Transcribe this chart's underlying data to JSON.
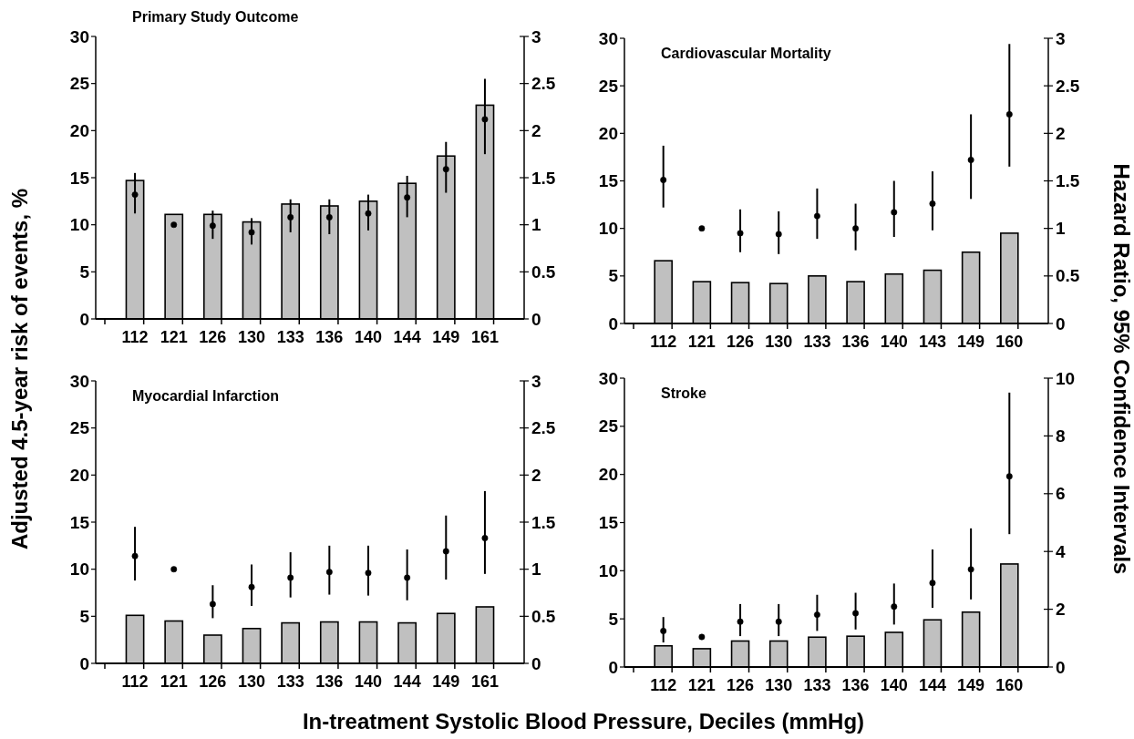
{
  "chart_data": [
    {
      "type": "bar",
      "title": "Primary Study Outcome",
      "ylabel": "Adjusted 4.5-year risk of events, %",
      "categories": [
        "112",
        "121",
        "126",
        "130",
        "133",
        "136",
        "140",
        "144",
        "149",
        "161"
      ],
      "ylim": [
        0,
        30
      ],
      "yticks": [
        0,
        5,
        10,
        15,
        20,
        25,
        30
      ],
      "y2lim": [
        0,
        3
      ],
      "y2ticks": [
        0,
        0.5,
        1,
        1.5,
        2,
        2.5,
        3
      ],
      "marker": "circle",
      "series": [
        {
          "color": "#c0c0c0",
          "values": [
            14.7,
            11.1,
            11.1,
            10.3,
            12.2,
            12.0,
            12.5,
            14.4,
            17.3,
            22.7
          ]
        },
        {
          "type": "scatter",
          "axis": "y2",
          "color": "#000000",
          "values": [
            1.32,
            1.0,
            0.99,
            0.92,
            1.08,
            1.08,
            1.12,
            1.29,
            1.59,
            2.12
          ],
          "errors": [
            [
              1.12,
              1.55
            ],
            null,
            [
              0.85,
              1.15
            ],
            [
              0.79,
              1.07
            ],
            [
              0.92,
              1.27
            ],
            [
              0.9,
              1.27
            ],
            [
              0.94,
              1.32
            ],
            [
              1.08,
              1.52
            ],
            [
              1.34,
              1.88
            ],
            [
              1.75,
              2.55
            ]
          ]
        }
      ]
    },
    {
      "type": "bar",
      "title": "Cardiovascular Mortality",
      "y2label": "Hazard Ratio, 95% Confidence Intervals",
      "categories": [
        "112",
        "121",
        "126",
        "130",
        "133",
        "136",
        "140",
        "143",
        "149",
        "160"
      ],
      "ylim": [
        0,
        30
      ],
      "yticks": [
        0,
        5,
        10,
        15,
        20,
        25,
        30
      ],
      "y2lim": [
        0,
        3
      ],
      "y2ticks": [
        0,
        0.5,
        1,
        1.5,
        2,
        2.5,
        3
      ],
      "marker": "circle",
      "series": [
        {
          "color": "#c0c0c0",
          "values": [
            6.6,
            4.4,
            4.3,
            4.2,
            5.0,
            4.4,
            5.2,
            5.6,
            7.5,
            9.5
          ]
        },
        {
          "type": "scatter",
          "axis": "y2",
          "color": "#000000",
          "values": [
            1.51,
            1.0,
            0.95,
            0.94,
            1.13,
            1.0,
            1.17,
            1.26,
            1.72,
            2.2
          ],
          "errors": [
            [
              1.22,
              1.87
            ],
            null,
            [
              0.75,
              1.2
            ],
            [
              0.73,
              1.18
            ],
            [
              0.89,
              1.42
            ],
            [
              0.77,
              1.26
            ],
            [
              0.91,
              1.5
            ],
            [
              0.98,
              1.6
            ],
            [
              1.31,
              2.2
            ],
            [
              1.65,
              2.94
            ]
          ]
        }
      ]
    },
    {
      "type": "bar",
      "title": "Myocardial Infarction",
      "xlabel": "In-treatment Systolic Blood Pressure, Deciles (mmHg)",
      "categories": [
        "112",
        "121",
        "126",
        "130",
        "133",
        "136",
        "140",
        "144",
        "149",
        "161"
      ],
      "ylim": [
        0,
        30
      ],
      "yticks": [
        0,
        5,
        10,
        15,
        20,
        25,
        30
      ],
      "y2lim": [
        0,
        3
      ],
      "y2ticks": [
        0,
        0.5,
        1,
        1.5,
        2,
        2.5,
        3
      ],
      "marker": "circle",
      "series": [
        {
          "color": "#c0c0c0",
          "values": [
            5.1,
            4.5,
            3.0,
            3.7,
            4.3,
            4.4,
            4.4,
            4.3,
            5.3,
            6.0
          ]
        },
        {
          "type": "scatter",
          "axis": "y2",
          "color": "#000000",
          "values": [
            1.14,
            1.0,
            0.63,
            0.81,
            0.91,
            0.97,
            0.96,
            0.91,
            1.19,
            1.33
          ],
          "errors": [
            [
              0.88,
              1.45
            ],
            null,
            [
              0.48,
              0.83
            ],
            [
              0.61,
              1.05
            ],
            [
              0.7,
              1.18
            ],
            [
              0.73,
              1.25
            ],
            [
              0.72,
              1.25
            ],
            [
              0.67,
              1.21
            ],
            [
              0.89,
              1.57
            ],
            [
              0.95,
              1.83
            ]
          ]
        }
      ]
    },
    {
      "type": "bar",
      "title": "Stroke",
      "categories": [
        "112",
        "121",
        "126",
        "130",
        "133",
        "136",
        "140",
        "144",
        "149",
        "160"
      ],
      "ylim": [
        0,
        30
      ],
      "yticks": [
        0,
        5,
        10,
        15,
        20,
        25,
        30
      ],
      "y2lim": [
        0,
        10
      ],
      "y2ticks": [
        0,
        2,
        4,
        6,
        8,
        10
      ],
      "marker": "circle",
      "series": [
        {
          "color": "#c0c0c0",
          "values": [
            2.2,
            1.9,
            2.7,
            2.7,
            3.1,
            3.2,
            3.6,
            4.9,
            5.7,
            10.7
          ]
        },
        {
          "type": "scatter",
          "axis": "y2",
          "color": "#000000",
          "values": [
            1.25,
            1.04,
            1.57,
            1.57,
            1.81,
            1.86,
            2.09,
            2.91,
            3.38,
            6.6
          ],
          "errors": [
            [
              0.85,
              1.73
            ],
            null,
            [
              1.07,
              2.18
            ],
            [
              1.07,
              2.18
            ],
            [
              1.25,
              2.5
            ],
            [
              1.3,
              2.57
            ],
            [
              1.47,
              2.89
            ],
            [
              2.05,
              4.07
            ],
            [
              2.34,
              4.8
            ],
            [
              4.6,
              9.5
            ]
          ]
        }
      ]
    }
  ]
}
